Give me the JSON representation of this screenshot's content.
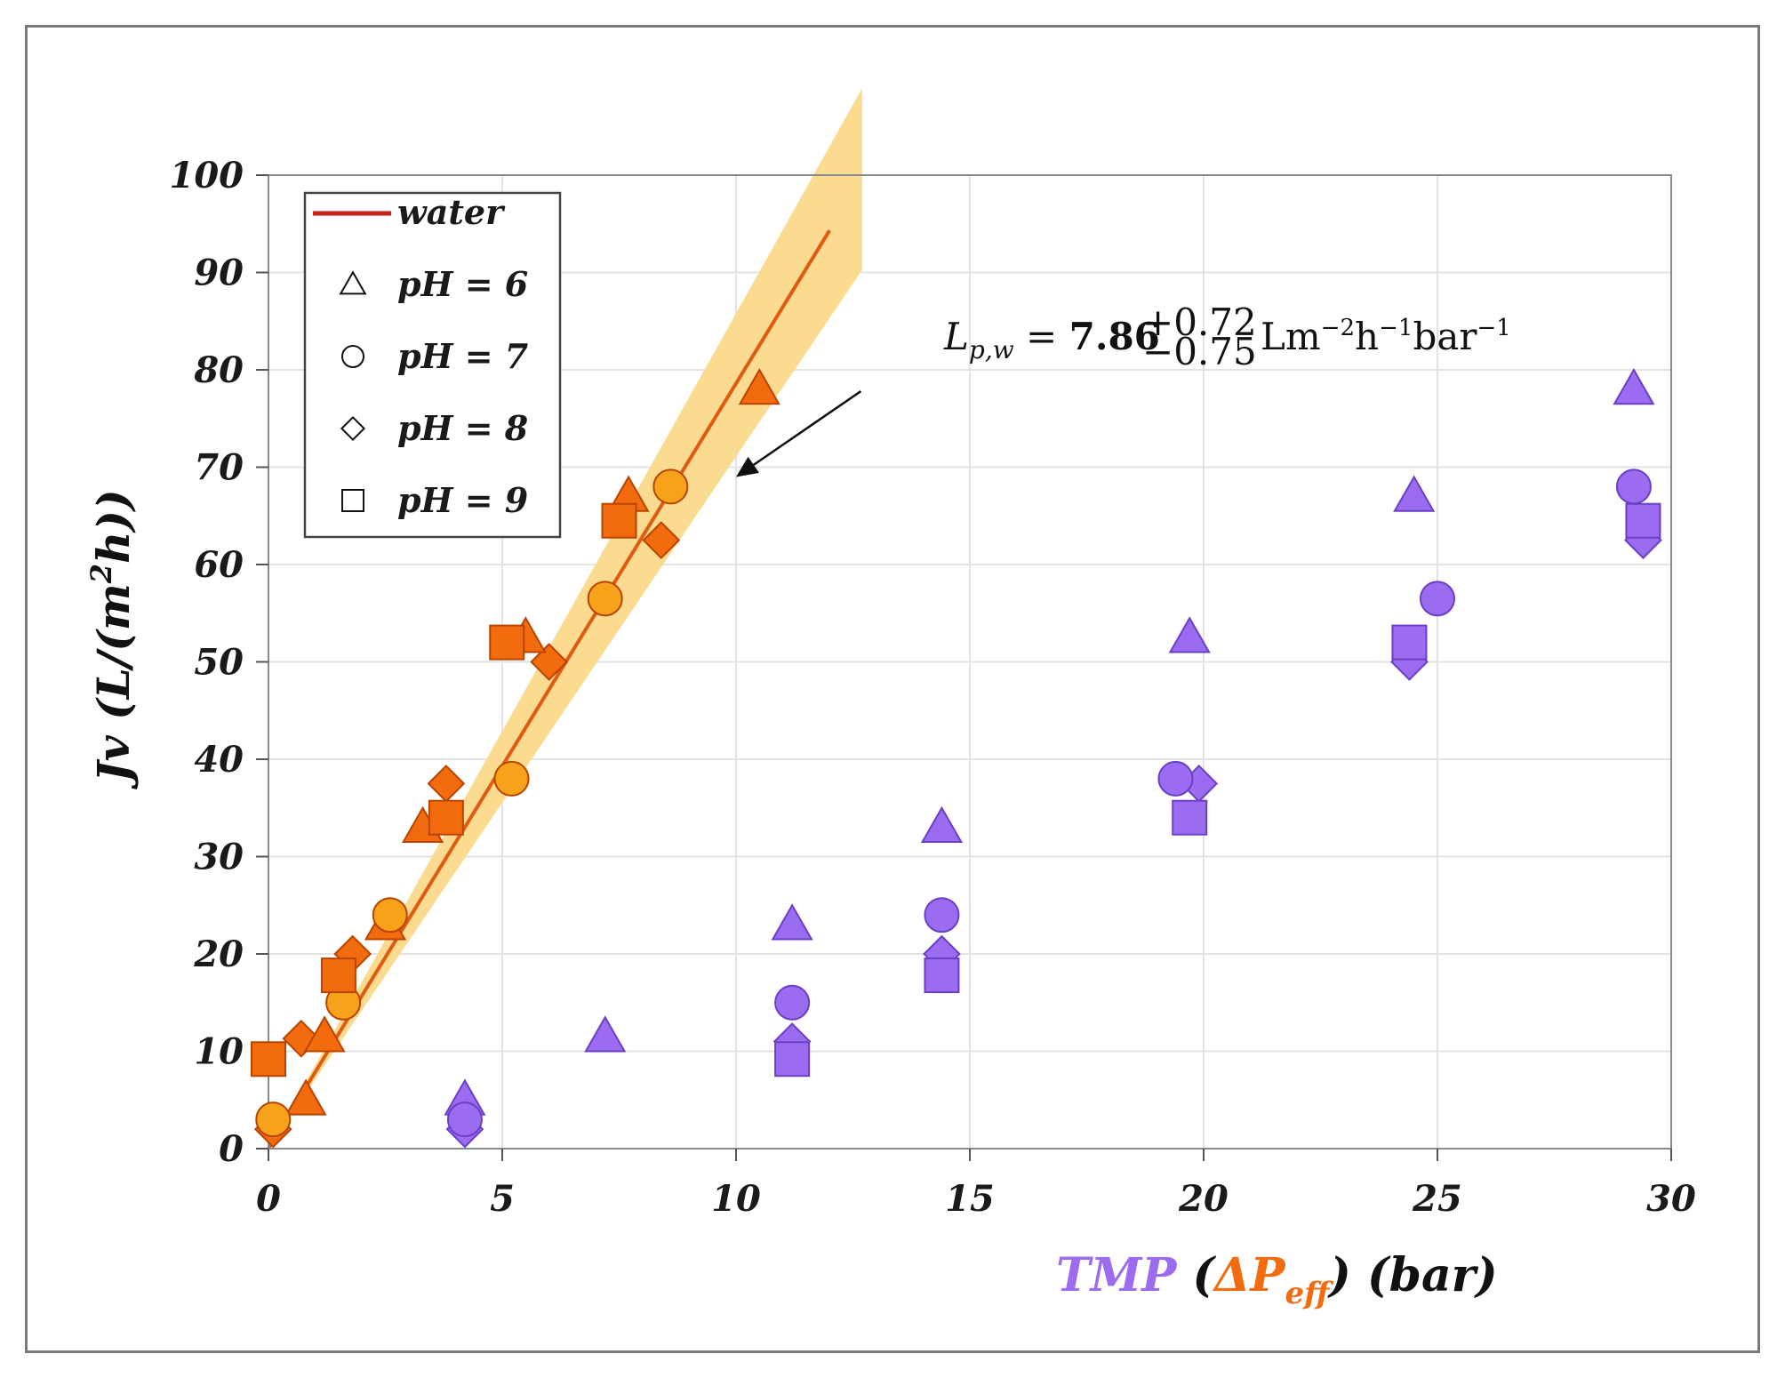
{
  "chart_data": {
    "type": "scatter",
    "xlabel": {
      "prefix": "TMP",
      "open": " (",
      "delta": "ΔP",
      "sub": "eff",
      "close": ")",
      "unit": " (bar)"
    },
    "ylabel": {
      "main": "Jv (L/(m",
      "sup": "2",
      "end": "h))"
    },
    "xlim": [
      0,
      30
    ],
    "ylim": [
      0,
      100
    ],
    "xticks": [
      "0",
      "5",
      "10",
      "15",
      "20",
      "25",
      "30"
    ],
    "yticks": [
      "0",
      "10",
      "20",
      "30",
      "40",
      "50",
      "60",
      "70",
      "80",
      "90",
      "100"
    ],
    "grid": true,
    "colors": {
      "dp_eff_series": "#F26B0F",
      "dp_eff_series_pH7": "#F7A21B",
      "tmp_series": "#9B6CF0",
      "fit_line": "#E05A10",
      "confidence_band": "#FBD98A",
      "legend_line": "#C81E1E",
      "tmp_label": "#9B6CF0",
      "dp_label": "#F26B0F"
    },
    "legend": {
      "position": "top-left",
      "entries": [
        {
          "label": "water",
          "marker": "line"
        },
        {
          "label": "pH = 6",
          "marker": "triangle"
        },
        {
          "label": "pH = 7",
          "marker": "circle"
        },
        {
          "label": "pH = 8",
          "marker": "diamond"
        },
        {
          "label": "pH = 9",
          "marker": "square"
        }
      ]
    },
    "fit": {
      "name": "water",
      "slope": 7.86,
      "slope_plus": 0.72,
      "slope_minus": 0.75,
      "x_range": [
        0,
        12
      ],
      "band_x_end": 12.7
    },
    "annotation": {
      "symbol": "L",
      "sub": "p,w",
      "equals": " = ",
      "value": "7.86",
      "plus": "+0.72",
      "minus": "−0.75",
      "units": "Lm",
      "u1": "−2",
      "u2": "h",
      "u3": "−1",
      "u4": "bar",
      "u5": "−1",
      "arrow_target": [
        10,
        69
      ],
      "arrow_from": [
        14,
        81
      ]
    },
    "series": [
      {
        "name": "pH = 6 (ΔPeff)",
        "axis_variable": "ΔPeff",
        "marker": "triangle",
        "color_key": "dp_eff_series",
        "x": [
          0.8,
          1.2,
          2.5,
          3.3,
          5.5,
          7.7,
          10.5
        ],
        "y": [
          5,
          11.5,
          23,
          33,
          52.5,
          67,
          78
        ]
      },
      {
        "name": "pH = 7 (ΔPeff)",
        "axis_variable": "ΔPeff",
        "marker": "circle",
        "color_key": "dp_eff_series_pH7",
        "x": [
          0.1,
          1.6,
          2.6,
          5.2,
          7.2,
          8.6
        ],
        "y": [
          3,
          15,
          24,
          38,
          56.5,
          68
        ]
      },
      {
        "name": "pH = 8 (ΔPeff)",
        "axis_variable": "ΔPeff",
        "marker": "diamond",
        "color_key": "dp_eff_series",
        "x": [
          0.1,
          0.7,
          1.8,
          3.8,
          6.0,
          8.4
        ],
        "y": [
          2,
          11.3,
          20,
          37.5,
          50,
          62.5
        ]
      },
      {
        "name": "pH = 9 (ΔPeff)",
        "axis_variable": "ΔPeff",
        "marker": "square",
        "color_key": "dp_eff_series",
        "x": [
          0.0,
          1.5,
          3.8,
          5.1,
          7.5
        ],
        "y": [
          9.2,
          17.8,
          34,
          52,
          64.5
        ]
      },
      {
        "name": "pH = 6 (TMP)",
        "axis_variable": "TMP",
        "marker": "triangle",
        "color_key": "tmp_series",
        "x": [
          4.2,
          7.2,
          11.2,
          14.4,
          19.7,
          24.5,
          29.2
        ],
        "y": [
          5,
          11.5,
          23,
          33,
          52.5,
          67,
          78
        ]
      },
      {
        "name": "pH = 7 (TMP)",
        "axis_variable": "TMP",
        "marker": "circle",
        "color_key": "tmp_series",
        "x": [
          4.2,
          11.2,
          14.4,
          19.4,
          25.0,
          29.2
        ],
        "y": [
          3,
          15,
          24,
          38,
          56.5,
          68
        ]
      },
      {
        "name": "pH = 8 (TMP)",
        "axis_variable": "TMP",
        "marker": "diamond",
        "color_key": "tmp_series",
        "x": [
          4.2,
          11.2,
          14.4,
          19.9,
          24.4,
          29.4
        ],
        "y": [
          2,
          11,
          20,
          37.5,
          50,
          62.5
        ]
      },
      {
        "name": "pH = 9 (TMP)",
        "axis_variable": "TMP",
        "marker": "square",
        "color_key": "tmp_series",
        "x": [
          11.2,
          14.4,
          19.7,
          24.4,
          29.4
        ],
        "y": [
          9.2,
          17.8,
          34,
          52,
          64.5
        ]
      }
    ]
  }
}
